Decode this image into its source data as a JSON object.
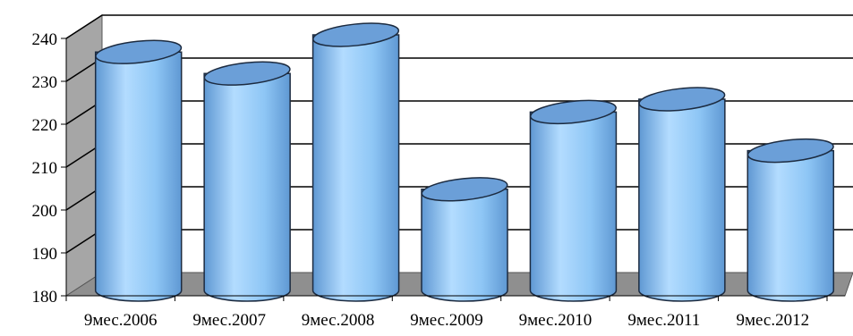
{
  "chart_data": {
    "type": "bar",
    "style": "3d-cylinder",
    "categories": [
      "9мес.2006",
      "9мес.2007",
      "9мес.2008",
      "9мес.2009",
      "9мес.2010",
      "9мес.2011",
      "9мес.2012"
    ],
    "values": [
      236,
      231,
      240,
      204,
      222,
      225,
      213
    ],
    "title": "",
    "xlabel": "",
    "ylabel": "",
    "ylim": [
      180,
      240
    ],
    "yticks": [
      "180",
      "190",
      "200",
      "210",
      "220",
      "230",
      "240"
    ],
    "grid": true,
    "legend": "none",
    "colors": {
      "bar_light": "#b3dcff",
      "bar_mid": "#8ec6f5",
      "bar_dark": "#5f98d3",
      "bar_top": "#6b9fd8",
      "outline": "#1c2b40",
      "wall_left": "#a6a6a6",
      "floor": "#8f8f8f",
      "gridline": "#000000"
    }
  }
}
